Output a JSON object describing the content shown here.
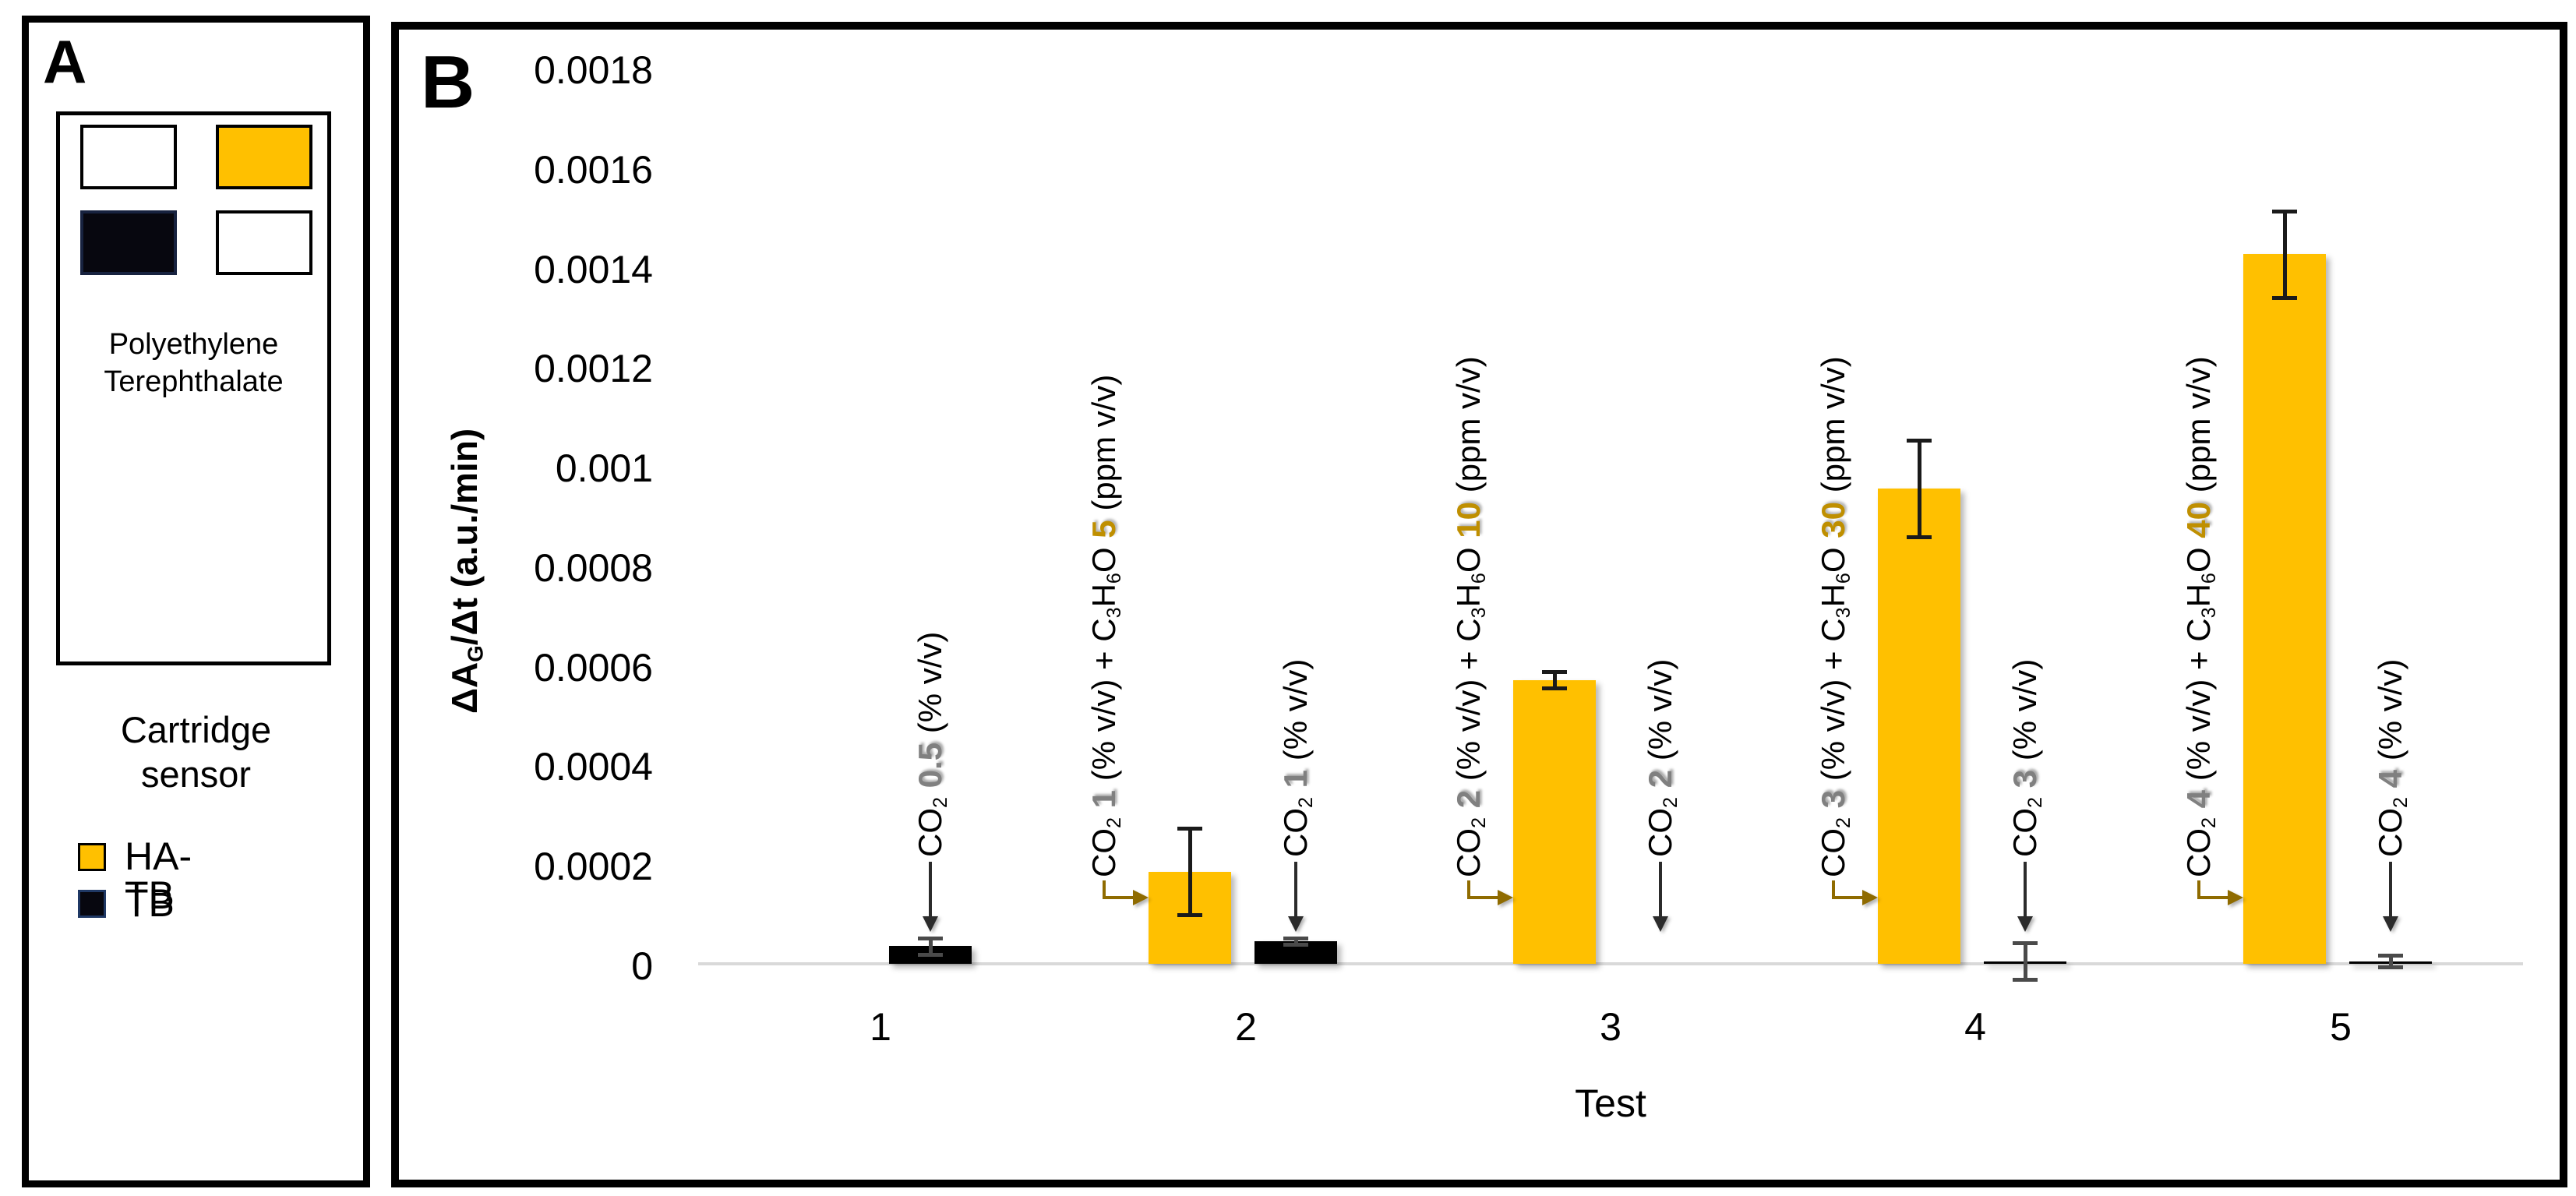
{
  "panel_a": {
    "label": "A",
    "substrate_line1": "Polyethylene",
    "substrate_line2": "Terephthalate",
    "caption_line1": "Cartridge",
    "caption_line2": "sensor",
    "cartridge_spots": [
      {
        "name": "blank-spot-top-left",
        "color": "#FFFFFF"
      },
      {
        "name": "ha-tb-spot",
        "color": "#FFC000"
      },
      {
        "name": "tb-spot",
        "color": "#07070f"
      },
      {
        "name": "blank-spot-bottom-right",
        "color": "#FFFFFF"
      }
    ],
    "legend": [
      {
        "label": "HA-TB",
        "color": "#FFC000",
        "border": "#000000"
      },
      {
        "label": "TB",
        "color": "#07070f",
        "border": "#1F3864"
      }
    ]
  },
  "panel_b": {
    "label": "B",
    "chart_data": {
      "type": "bar",
      "title": "",
      "xlabel": "Test",
      "ylabel": "ΔAG/Δt (a.u./min)",
      "ylabel_segments": [
        {
          "t": "ΔA"
        },
        {
          "t": "G",
          "sub": true
        },
        {
          "t": "/Δt (a.u./min)"
        }
      ],
      "categories": [
        "1",
        "2",
        "3",
        "4",
        "5"
      ],
      "ylim": [
        0,
        0.0018
      ],
      "grid": "zero-line-only",
      "legend_position": "panel-A",
      "ytick_labels": [
        "0",
        "0.0002",
        "0.0004",
        "0.0006",
        "0.0008",
        "0.001",
        "0.0012",
        "0.0014",
        "0.0016",
        "0.0018"
      ],
      "ytick_values": [
        0,
        0.0002,
        0.0004,
        0.0006,
        0.0008,
        0.001,
        0.0012,
        0.0014,
        0.0016,
        0.0018
      ],
      "series": [
        {
          "name": "HA-TB",
          "color": "#FFC000",
          "values": [
            0,
            0.00019,
            0.000575,
            0.00096,
            0.00143
          ],
          "errors": [
            0,
            9e-05,
            2e-05,
            0.0001,
            9e-05
          ]
        },
        {
          "name": "TB",
          "color": "#000000",
          "values": [
            4e-05,
            5e-05,
            0,
            1e-05,
            1e-05
          ],
          "errors": [
            2e-05,
            1e-05,
            0,
            4e-05,
            1.5e-05
          ]
        }
      ],
      "annotations": [
        {
          "cat": 0,
          "series": "TB",
          "arrow": "down",
          "text": "CO2 0.5 (% v/v)",
          "segments": [
            {
              "t": "CO"
            },
            {
              "t": "2",
              "sub": true
            },
            {
              "t": " "
            },
            {
              "t": "0.5",
              "num": "gray"
            },
            {
              "t": " (% v/v)"
            }
          ]
        },
        {
          "cat": 1,
          "series": "HA-TB",
          "arrow": "elbow",
          "text": "CO2 1 (% v/v) + C3H6O 5 (ppm v/v)",
          "segments": [
            {
              "t": "CO"
            },
            {
              "t": "2",
              "sub": true
            },
            {
              "t": " "
            },
            {
              "t": "1",
              "num": "gray"
            },
            {
              "t": " (% v/v) + C"
            },
            {
              "t": "3",
              "sub": true
            },
            {
              "t": "H"
            },
            {
              "t": "6",
              "sub": true
            },
            {
              "t": "O "
            },
            {
              "t": "5",
              "num": "gold"
            },
            {
              "t": " (ppm v/v)"
            }
          ]
        },
        {
          "cat": 1,
          "series": "TB",
          "arrow": "down",
          "text": "CO2 1 (% v/v)",
          "segments": [
            {
              "t": "CO"
            },
            {
              "t": "2",
              "sub": true
            },
            {
              "t": " "
            },
            {
              "t": "1",
              "num": "gray"
            },
            {
              "t": " (% v/v)"
            }
          ]
        },
        {
          "cat": 2,
          "series": "HA-TB",
          "arrow": "elbow",
          "text": "CO2 2 (% v/v) + C3H6O 10 (ppm v/v)",
          "segments": [
            {
              "t": "CO"
            },
            {
              "t": "2",
              "sub": true
            },
            {
              "t": " "
            },
            {
              "t": "2",
              "num": "gray"
            },
            {
              "t": " (% v/v) + C"
            },
            {
              "t": "3",
              "sub": true
            },
            {
              "t": "H"
            },
            {
              "t": "6",
              "sub": true
            },
            {
              "t": "O "
            },
            {
              "t": "10",
              "num": "gold"
            },
            {
              "t": " (ppm v/v)"
            }
          ]
        },
        {
          "cat": 2,
          "series": "TB",
          "arrow": "down",
          "text": "CO2 2 (% v/v)",
          "segments": [
            {
              "t": "CO"
            },
            {
              "t": "2",
              "sub": true
            },
            {
              "t": " "
            },
            {
              "t": "2",
              "num": "gray"
            },
            {
              "t": " (% v/v)"
            }
          ]
        },
        {
          "cat": 3,
          "series": "HA-TB",
          "arrow": "elbow",
          "text": "CO2 3 (% v/v) + C3H6O 30 (ppm v/v)",
          "segments": [
            {
              "t": "CO"
            },
            {
              "t": "2",
              "sub": true
            },
            {
              "t": " "
            },
            {
              "t": "3",
              "num": "gray"
            },
            {
              "t": " (% v/v) + C"
            },
            {
              "t": "3",
              "sub": true
            },
            {
              "t": "H"
            },
            {
              "t": "6",
              "sub": true
            },
            {
              "t": "O "
            },
            {
              "t": "30",
              "num": "gold"
            },
            {
              "t": " (ppm v/v)"
            }
          ]
        },
        {
          "cat": 3,
          "series": "TB",
          "arrow": "down",
          "text": "CO2 3 (% v/v)",
          "segments": [
            {
              "t": "CO"
            },
            {
              "t": "2",
              "sub": true
            },
            {
              "t": " "
            },
            {
              "t": "3",
              "num": "gray"
            },
            {
              "t": " (% v/v)"
            }
          ]
        },
        {
          "cat": 4,
          "series": "HA-TB",
          "arrow": "elbow",
          "text": "CO2 4 (% v/v) + C3H6O 40 (ppm v/v)",
          "segments": [
            {
              "t": "CO"
            },
            {
              "t": "2",
              "sub": true
            },
            {
              "t": " "
            },
            {
              "t": "4",
              "num": "gray"
            },
            {
              "t": " (% v/v) + C"
            },
            {
              "t": "3",
              "sub": true
            },
            {
              "t": "H"
            },
            {
              "t": "6",
              "sub": true
            },
            {
              "t": "O "
            },
            {
              "t": "40",
              "num": "gold"
            },
            {
              "t": " (ppm v/v)"
            }
          ]
        },
        {
          "cat": 4,
          "series": "TB",
          "arrow": "down",
          "text": "CO2 4 (% v/v)",
          "segments": [
            {
              "t": "CO"
            },
            {
              "t": "2",
              "sub": true
            },
            {
              "t": " "
            },
            {
              "t": "4",
              "num": "gray"
            },
            {
              "t": " (% v/v)"
            }
          ]
        }
      ],
      "arrow_colors": {
        "down": "#2b2b2b",
        "elbow": "#8F6B00"
      }
    }
  }
}
